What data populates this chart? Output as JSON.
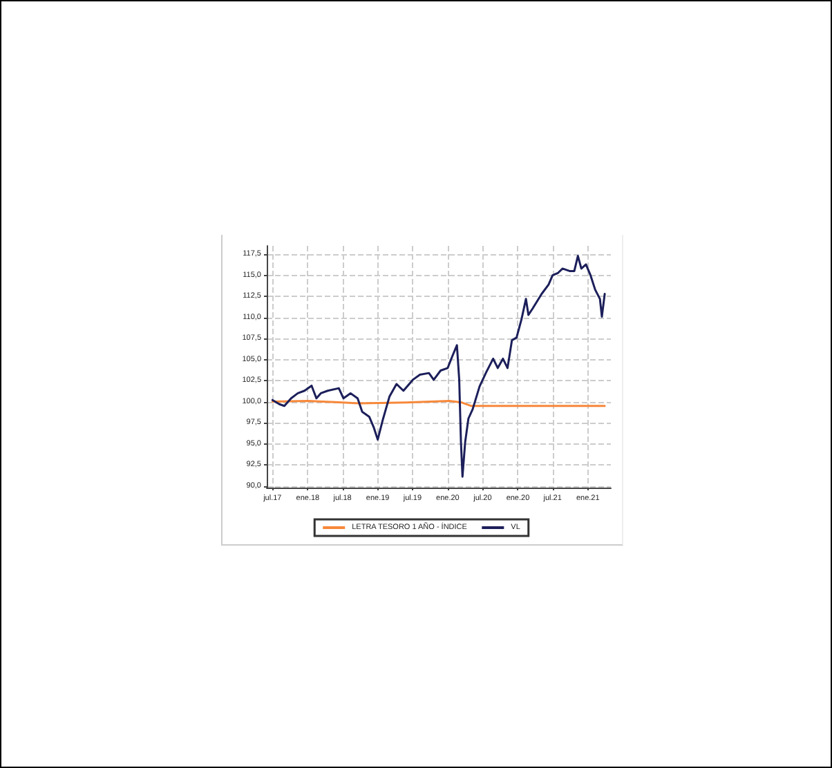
{
  "chart_data": {
    "type": "line",
    "xlim": [
      "2017-06-01",
      "2022-05-01"
    ],
    "xticks": [
      {
        "value": "2017-07-01",
        "label": "jul.17"
      },
      {
        "value": "2018-01-01",
        "label": "ene.18"
      },
      {
        "value": "2018-07-01",
        "label": "jul.18"
      },
      {
        "value": "2019-01-01",
        "label": "ene.19"
      },
      {
        "value": "2019-07-01",
        "label": "jul.19"
      },
      {
        "value": "2020-01-01",
        "label": "ene.20"
      },
      {
        "value": "2020-07-01",
        "label": "jul.20"
      },
      {
        "value": "2021-01-01",
        "label": "ene.20"
      },
      {
        "value": "2021-07-01",
        "label": "jul.21"
      },
      {
        "value": "2022-01-01",
        "label": "ene.21"
      }
    ],
    "ylim": [
      89.8,
      118.5
    ],
    "yticks": [
      {
        "value": 90,
        "label": "90,0"
      },
      {
        "value": 92.5,
        "label": "92,5"
      },
      {
        "value": 95,
        "label": "95,0"
      },
      {
        "value": 97.5,
        "label": "97,5"
      },
      {
        "value": 100,
        "label": "100,0"
      },
      {
        "value": 102.5,
        "label": "102,5"
      },
      {
        "value": 105,
        "label": "105,0"
      },
      {
        "value": 107.5,
        "label": "107,5"
      },
      {
        "value": 110,
        "label": "110,0"
      },
      {
        "value": 112.5,
        "label": "112,5"
      },
      {
        "value": 115,
        "label": "115,0"
      },
      {
        "value": 117.5,
        "label": "117,5"
      }
    ],
    "grid": true,
    "legend": "bottom",
    "marker": "none",
    "line_style": "solid",
    "series": [
      {
        "name": "LETRA TESORO 1 AÑO - ÍNDICE",
        "color": "#f7883a",
        "x": [
          "2017-07-01",
          "2018-01-01",
          "2018-07-01",
          "2018-10-01",
          "2019-06-01",
          "2020-01-10",
          "2020-03-15",
          "2020-05-01",
          "2022-03-30"
        ],
        "values": [
          100.0,
          100.1,
          99.9,
          99.8,
          99.9,
          100.1,
          99.9,
          99.5,
          99.5
        ]
      },
      {
        "name": "VL",
        "color": "#1c1f5a",
        "x": [
          "2017-07-01",
          "2017-08-06",
          "2017-09-01",
          "2017-10-06",
          "2017-11-10",
          "2017-12-15",
          "2018-01-21",
          "2018-02-15",
          "2018-03-10",
          "2018-04-15",
          "2018-06-12",
          "2018-07-06",
          "2018-08-12",
          "2018-09-18",
          "2018-10-12",
          "2018-11-18",
          "2018-12-12",
          "2019-01-01",
          "2019-01-28",
          "2019-03-03",
          "2019-04-09",
          "2019-05-15",
          "2019-07-03",
          "2019-08-09",
          "2019-09-25",
          "2019-10-20",
          "2019-11-25",
          "2020-01-01",
          "2020-01-25",
          "2020-02-18",
          "2020-03-01",
          "2020-03-10",
          "2020-03-18",
          "2020-04-01",
          "2020-04-18",
          "2020-05-10",
          "2020-06-15",
          "2020-07-20",
          "2020-08-25",
          "2020-09-18",
          "2020-10-15",
          "2020-11-08",
          "2020-12-01",
          "2020-12-25",
          "2021-01-20",
          "2021-02-12",
          "2021-02-25",
          "2021-03-20",
          "2021-05-05",
          "2021-06-10",
          "2021-07-01",
          "2021-07-30",
          "2021-08-22",
          "2021-09-30",
          "2021-10-22",
          "2021-11-10",
          "2021-11-28",
          "2021-12-22",
          "2022-01-15",
          "2022-02-08",
          "2022-03-05",
          "2022-03-15",
          "2022-03-30"
        ],
        "values": [
          100.2,
          99.7,
          99.5,
          100.4,
          101.0,
          101.3,
          101.9,
          100.4,
          101.0,
          101.3,
          101.6,
          100.4,
          101.0,
          100.4,
          98.8,
          98.2,
          96.9,
          95.5,
          97.9,
          100.6,
          102.1,
          101.3,
          102.6,
          103.2,
          103.4,
          102.6,
          103.7,
          104.0,
          105.4,
          106.7,
          102.6,
          95.2,
          91.1,
          95.2,
          98.0,
          99.1,
          101.8,
          103.5,
          105.1,
          104.0,
          105.1,
          104.0,
          107.3,
          107.6,
          109.8,
          112.2,
          110.3,
          111.1,
          112.8,
          113.9,
          115.0,
          115.3,
          115.8,
          115.5,
          115.5,
          117.3,
          115.8,
          116.3,
          115.0,
          113.3,
          112.2,
          110.1,
          112.8
        ]
      }
    ]
  }
}
